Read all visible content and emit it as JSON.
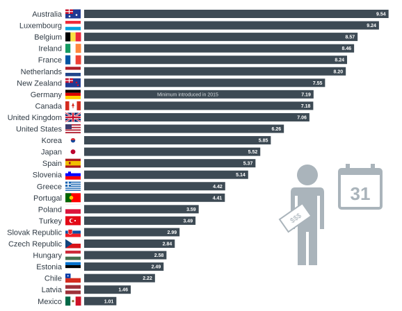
{
  "chart_data": {
    "type": "bar",
    "orientation": "horizontal",
    "categories": [
      "Australia",
      "Luxembourg",
      "Belgium",
      "Ireland",
      "France",
      "Netherlands",
      "New Zealand",
      "Germany",
      "Canada",
      "United Kingdom",
      "United States",
      "Korea",
      "Japan",
      "Spain",
      "Slovenia",
      "Greece",
      "Portugal",
      "Poland",
      "Turkey",
      "Slovak Republic",
      "Czech Republic",
      "Hungary",
      "Estonia",
      "Chile",
      "Latvia",
      "Mexico"
    ],
    "values": [
      9.54,
      9.24,
      8.57,
      8.46,
      8.24,
      8.2,
      7.55,
      7.19,
      7.18,
      7.06,
      6.26,
      5.85,
      5.52,
      5.37,
      5.14,
      4.42,
      4.41,
      3.59,
      3.49,
      2.99,
      2.84,
      2.58,
      2.49,
      2.22,
      1.46,
      1.01
    ],
    "value_labels": [
      "9.54",
      "9.24",
      "8.57",
      "8.46",
      "8.24",
      "8.20",
      "7.55",
      "7.19",
      "7.18",
      "7.06",
      "6.26",
      "5.85",
      "5.52",
      "5.37",
      "5.14",
      "4.42",
      "4.41",
      "3.59",
      "3.49",
      "2.99",
      "2.84",
      "2.58",
      "2.49",
      "2.22",
      "1.46",
      "1.01"
    ],
    "xlim": [
      0,
      9.7
    ],
    "annotations": [
      {
        "category": "Germany",
        "text": "Minimum introduced in 2015"
      }
    ],
    "flags": [
      "flag-australia-icon",
      "flag-luxembourg-icon",
      "flag-belgium-icon",
      "flag-ireland-icon",
      "flag-france-icon",
      "flag-netherlands-icon",
      "flag-new-zealand-icon",
      "flag-germany-icon",
      "flag-canada-icon",
      "flag-united-kingdom-icon",
      "flag-united-states-icon",
      "flag-korea-icon",
      "flag-japan-icon",
      "flag-spain-icon",
      "flag-slovenia-icon",
      "flag-greece-icon",
      "flag-portugal-icon",
      "flag-poland-icon",
      "flag-turkey-icon",
      "flag-slovak-republic-icon",
      "flag-czech-republic-icon",
      "flag-hungary-icon",
      "flag-estonia-icon",
      "flag-chile-icon",
      "flag-latvia-icon",
      "flag-mexico-icon"
    ],
    "bar_color": "#3d4a54"
  },
  "illustration": {
    "person_icon": "person-holding-money-icon",
    "calendar_icon": "calendar-icon",
    "calendar_day": "31",
    "money_text": "$$$",
    "color": "#aab4bb"
  }
}
